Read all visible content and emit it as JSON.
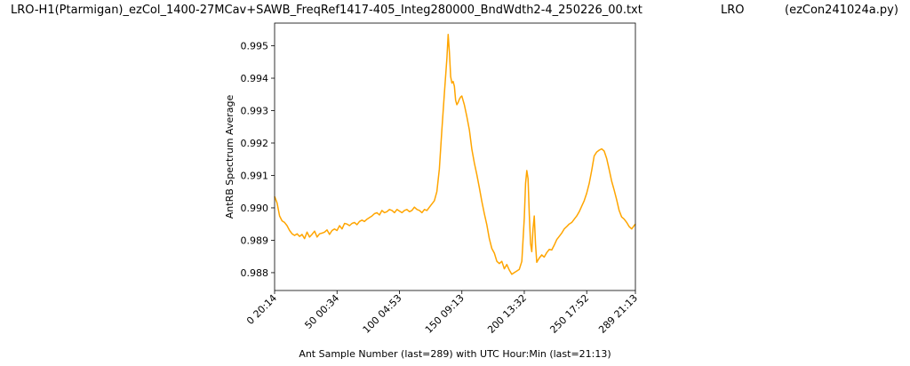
{
  "header": {
    "title_left": "LRO-H1(Ptarmigan)_ezCol_1400-27MCav+SAWB_FreqRef1417-405_Integ280000_BndWdth2-4_250226_00.txt",
    "title_mid": "LRO",
    "title_right": "(ezCon241024a.py)"
  },
  "chart_data": {
    "type": "line",
    "xlabel": "Ant Sample Number (last=289) with UTC Hour:Min (last=21:13)",
    "ylabel": "AntRB Spectrum Average",
    "xlim": [
      0,
      289
    ],
    "ylim": [
      0.98745,
      0.9957
    ],
    "x_ticks": [
      {
        "value": 0,
        "label": "0  20:14"
      },
      {
        "value": 50,
        "label": "50  00:34"
      },
      {
        "value": 100,
        "label": "100  04:53"
      },
      {
        "value": 150,
        "label": "150  09:13"
      },
      {
        "value": 200,
        "label": "200  13:32"
      },
      {
        "value": 250,
        "label": "250  17:52"
      },
      {
        "value": 289,
        "label": "289  21:13"
      }
    ],
    "y_ticks": [
      {
        "value": 0.988,
        "label": "0.988"
      },
      {
        "value": 0.989,
        "label": "0.989"
      },
      {
        "value": 0.99,
        "label": "0.990"
      },
      {
        "value": 0.991,
        "label": "0.991"
      },
      {
        "value": 0.992,
        "label": "0.992"
      },
      {
        "value": 0.993,
        "label": "0.993"
      },
      {
        "value": 0.994,
        "label": "0.994"
      },
      {
        "value": 0.995,
        "label": "0.995"
      }
    ],
    "grid": false,
    "series": [
      {
        "color": "#ffa500",
        "points": [
          [
            0,
            0.99035
          ],
          [
            2,
            0.99015
          ],
          [
            4,
            0.98975
          ],
          [
            6,
            0.9896
          ],
          [
            8,
            0.98955
          ],
          [
            10,
            0.98945
          ],
          [
            12,
            0.9893
          ],
          [
            14,
            0.9892
          ],
          [
            16,
            0.98915
          ],
          [
            18,
            0.9892
          ],
          [
            20,
            0.98912
          ],
          [
            22,
            0.98918
          ],
          [
            24,
            0.98905
          ],
          [
            26,
            0.98925
          ],
          [
            28,
            0.9891
          ],
          [
            30,
            0.98918
          ],
          [
            32,
            0.98928
          ],
          [
            34,
            0.9891
          ],
          [
            36,
            0.9892
          ],
          [
            38,
            0.98922
          ],
          [
            40,
            0.98925
          ],
          [
            42,
            0.98932
          ],
          [
            44,
            0.98918
          ],
          [
            46,
            0.9893
          ],
          [
            48,
            0.98935
          ],
          [
            50,
            0.9893
          ],
          [
            52,
            0.98945
          ],
          [
            54,
            0.98935
          ],
          [
            56,
            0.98952
          ],
          [
            58,
            0.9895
          ],
          [
            60,
            0.98945
          ],
          [
            62,
            0.98952
          ],
          [
            64,
            0.98955
          ],
          [
            66,
            0.98948
          ],
          [
            68,
            0.98958
          ],
          [
            70,
            0.98962
          ],
          [
            72,
            0.98958
          ],
          [
            74,
            0.98965
          ],
          [
            76,
            0.9897
          ],
          [
            78,
            0.98975
          ],
          [
            80,
            0.98982
          ],
          [
            82,
            0.98985
          ],
          [
            84,
            0.98978
          ],
          [
            86,
            0.98992
          ],
          [
            88,
            0.98985
          ],
          [
            90,
            0.98988
          ],
          [
            92,
            0.98995
          ],
          [
            94,
            0.98992
          ],
          [
            96,
            0.98985
          ],
          [
            98,
            0.98995
          ],
          [
            100,
            0.9899
          ],
          [
            102,
            0.98985
          ],
          [
            104,
            0.98992
          ],
          [
            106,
            0.98995
          ],
          [
            108,
            0.98988
          ],
          [
            110,
            0.98992
          ],
          [
            112,
            0.99002
          ],
          [
            114,
            0.98995
          ],
          [
            116,
            0.98992
          ],
          [
            118,
            0.98985
          ],
          [
            120,
            0.98995
          ],
          [
            122,
            0.98992
          ],
          [
            124,
            0.99002
          ],
          [
            126,
            0.99012
          ],
          [
            128,
            0.99022
          ],
          [
            130,
            0.9905
          ],
          [
            132,
            0.9912
          ],
          [
            134,
            0.9924
          ],
          [
            136,
            0.99355
          ],
          [
            138,
            0.99462
          ],
          [
            139,
            0.99535
          ],
          [
            140,
            0.9948
          ],
          [
            141,
            0.99405
          ],
          [
            142,
            0.99385
          ],
          [
            143,
            0.9939
          ],
          [
            144,
            0.99375
          ],
          [
            145,
            0.99332
          ],
          [
            146,
            0.99318
          ],
          [
            147,
            0.99325
          ],
          [
            148,
            0.99335
          ],
          [
            149,
            0.99342
          ],
          [
            150,
            0.99345
          ],
          [
            152,
            0.99318
          ],
          [
            154,
            0.99282
          ],
          [
            156,
            0.9924
          ],
          [
            158,
            0.9918
          ],
          [
            160,
            0.99138
          ],
          [
            162,
            0.99102
          ],
          [
            164,
            0.99062
          ],
          [
            166,
            0.9902
          ],
          [
            168,
            0.98982
          ],
          [
            170,
            0.98948
          ],
          [
            172,
            0.98905
          ],
          [
            174,
            0.98875
          ],
          [
            176,
            0.9886
          ],
          [
            178,
            0.98835
          ],
          [
            180,
            0.98828
          ],
          [
            182,
            0.98835
          ],
          [
            184,
            0.98812
          ],
          [
            186,
            0.98825
          ],
          [
            188,
            0.98808
          ],
          [
            190,
            0.98795
          ],
          [
            192,
            0.988
          ],
          [
            194,
            0.98805
          ],
          [
            196,
            0.9881
          ],
          [
            198,
            0.98835
          ],
          [
            200,
            0.9897
          ],
          [
            201,
            0.99075
          ],
          [
            202,
            0.99115
          ],
          [
            203,
            0.9909
          ],
          [
            204,
            0.9898
          ],
          [
            205,
            0.9889
          ],
          [
            206,
            0.98865
          ],
          [
            207,
            0.98935
          ],
          [
            208,
            0.98975
          ],
          [
            209,
            0.98888
          ],
          [
            210,
            0.98832
          ],
          [
            212,
            0.98845
          ],
          [
            214,
            0.98855
          ],
          [
            216,
            0.98848
          ],
          [
            218,
            0.98862
          ],
          [
            220,
            0.98872
          ],
          [
            222,
            0.9887
          ],
          [
            224,
            0.98885
          ],
          [
            226,
            0.98902
          ],
          [
            228,
            0.98912
          ],
          [
            230,
            0.98922
          ],
          [
            232,
            0.98935
          ],
          [
            234,
            0.98942
          ],
          [
            236,
            0.9895
          ],
          [
            238,
            0.98955
          ],
          [
            240,
            0.98965
          ],
          [
            242,
            0.98975
          ],
          [
            244,
            0.98988
          ],
          [
            246,
            0.99005
          ],
          [
            248,
            0.99022
          ],
          [
            250,
            0.99045
          ],
          [
            252,
            0.99075
          ],
          [
            254,
            0.99115
          ],
          [
            256,
            0.9916
          ],
          [
            258,
            0.99172
          ],
          [
            260,
            0.99178
          ],
          [
            262,
            0.99182
          ],
          [
            264,
            0.99175
          ],
          [
            266,
            0.99152
          ],
          [
            268,
            0.99118
          ],
          [
            270,
            0.99082
          ],
          [
            272,
            0.99055
          ],
          [
            274,
            0.99025
          ],
          [
            276,
            0.98992
          ],
          [
            278,
            0.98972
          ],
          [
            280,
            0.98965
          ],
          [
            282,
            0.98955
          ],
          [
            284,
            0.98942
          ],
          [
            286,
            0.98935
          ],
          [
            288,
            0.98945
          ],
          [
            289,
            0.9895
          ]
        ]
      }
    ]
  }
}
